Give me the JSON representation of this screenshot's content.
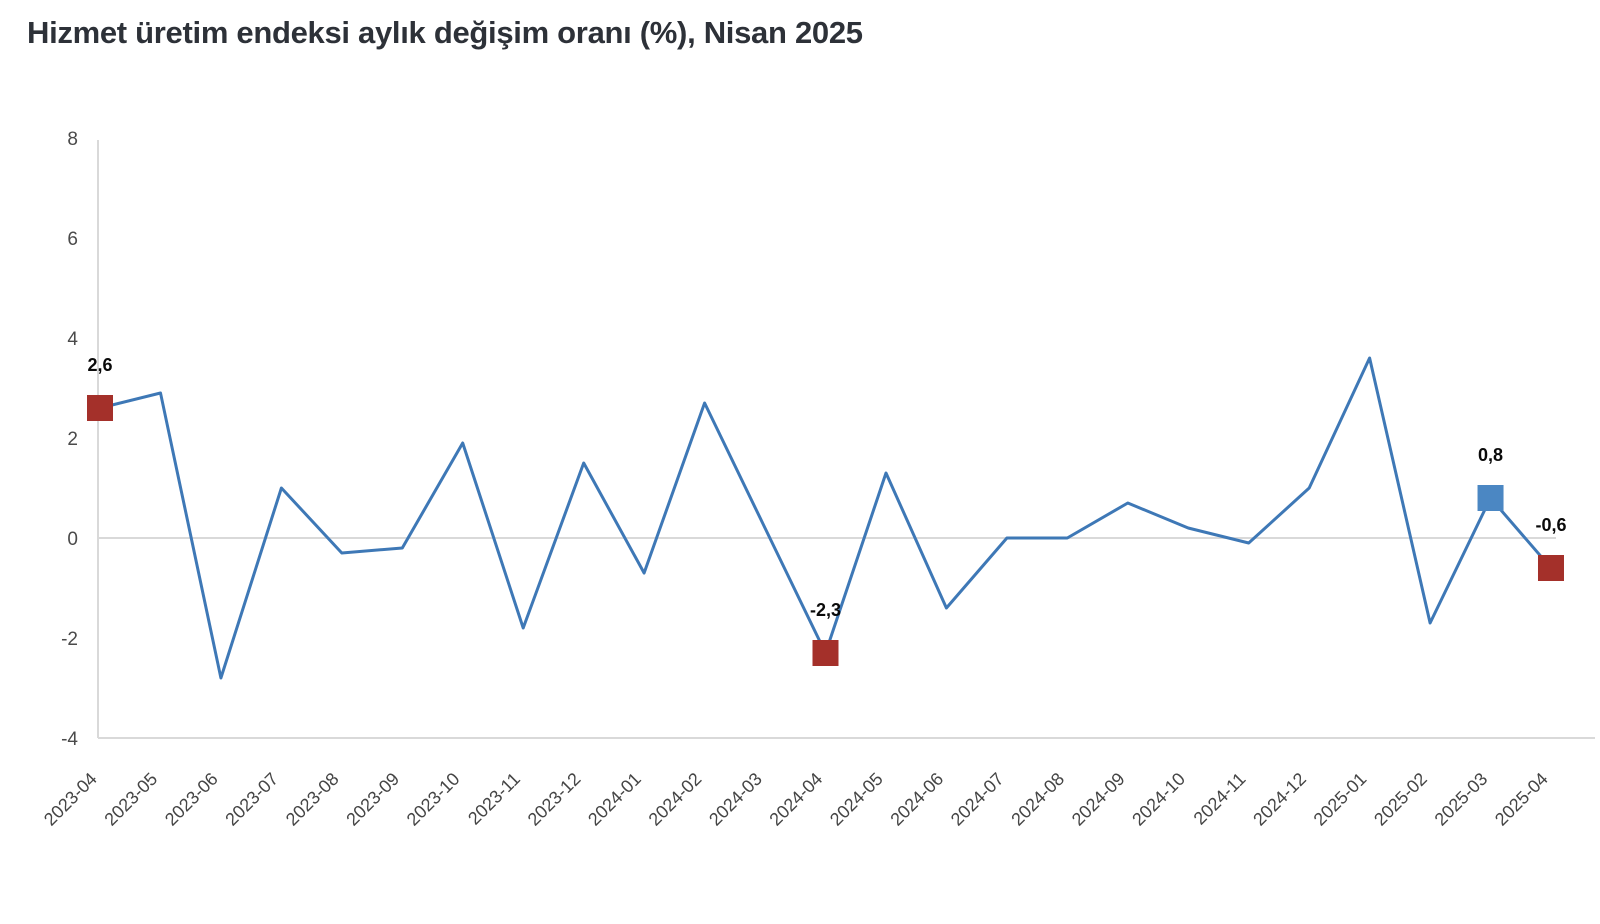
{
  "title": "Hizmet üretim endeksi aylık değişim oranı (%), Nisan 2025",
  "chart_data": {
    "type": "line",
    "x": [
      "2023-04",
      "2023-05",
      "2023-06",
      "2023-07",
      "2023-08",
      "2023-09",
      "2023-10",
      "2023-11",
      "2023-12",
      "2024-01",
      "2024-02",
      "2024-03",
      "2024-04",
      "2024-05",
      "2024-06",
      "2024-07",
      "2024-08",
      "2024-09",
      "2024-10",
      "2024-11",
      "2024-12",
      "2025-01",
      "2025-02",
      "2025-03",
      "2025-04"
    ],
    "values": [
      2.6,
      2.9,
      -2.8,
      1.0,
      -0.3,
      -0.2,
      1.9,
      -1.8,
      1.5,
      -0.7,
      2.7,
      0.2,
      -2.3,
      1.3,
      -1.4,
      0.0,
      0.0,
      0.7,
      0.2,
      -0.1,
      1.0,
      3.6,
      -1.7,
      0.8,
      -0.6
    ],
    "ylim": [
      -4,
      8
    ],
    "yticks": [
      8,
      6,
      4,
      2,
      0,
      -2,
      -4
    ],
    "xlabel": "",
    "ylabel": "",
    "legend_position": "none",
    "grid": "zero-gridline-and-bottom-axis-only",
    "line_color": "#3E78B6",
    "gridline_color": "#D9D9D9",
    "annotations": [
      {
        "x": "2023-04",
        "value": 2.6,
        "label": "2,6",
        "marker": "square",
        "marker_color": "#A4302A"
      },
      {
        "x": "2024-04",
        "value": -2.3,
        "label": "-2,3",
        "marker": "square",
        "marker_color": "#A4302A"
      },
      {
        "x": "2025-03",
        "value": 0.8,
        "label": "0,8",
        "marker": "square",
        "marker_color": "#4B87C3"
      },
      {
        "x": "2025-04",
        "value": -0.6,
        "label": "-0,6",
        "marker": "square",
        "marker_color": "#A4302A"
      }
    ]
  }
}
